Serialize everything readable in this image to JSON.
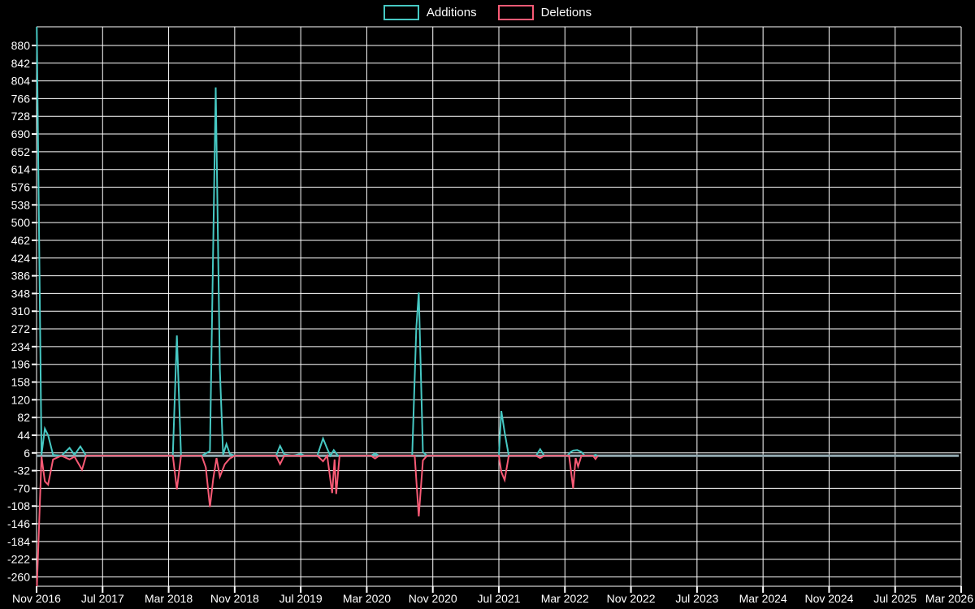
{
  "page": {
    "background": "#000000",
    "grid_color": "#ffffff",
    "text_color": "#ffffff"
  },
  "legend": {
    "items": [
      {
        "label": "Additions",
        "color": "#46c8c3"
      },
      {
        "label": "Deletions",
        "color": "#f85a75"
      }
    ]
  },
  "chart_data": {
    "type": "line",
    "title": "",
    "xlabel": "",
    "ylabel": "",
    "legend_position": "top-center",
    "grid": true,
    "x_axis": {
      "tick_labels": [
        "Nov 2016",
        "Jul 2017",
        "Mar 2018",
        "Nov 2018",
        "Jul 2019",
        "Mar 2020",
        "Nov 2020",
        "Jul 2021",
        "Mar 2022",
        "Nov 2022",
        "Jul 2023",
        "Mar 2024",
        "Nov 2024",
        "Jul 2025",
        "Mar 2026"
      ],
      "months_per_tick": 8,
      "total_months": 112
    },
    "y_axis": {
      "tick_values": [
        880,
        842,
        804,
        766,
        728,
        690,
        652,
        614,
        576,
        538,
        500,
        462,
        424,
        386,
        348,
        310,
        272,
        234,
        196,
        158,
        120,
        82,
        44,
        6,
        -32,
        -70,
        -108,
        -146,
        -184,
        -222,
        -260
      ],
      "tick_step": 38,
      "range": [
        -280,
        920
      ]
    },
    "zero_line": {
      "value": 0,
      "color": "#92a8b0"
    },
    "series": [
      {
        "name": "Additions",
        "color": "#46c8c3",
        "points": [
          [
            0,
            960
          ],
          [
            0.6,
            2
          ],
          [
            1,
            58
          ],
          [
            1.4,
            44
          ],
          [
            2,
            2
          ],
          [
            3,
            0
          ],
          [
            4,
            17
          ],
          [
            4.6,
            2
          ],
          [
            5.3,
            20
          ],
          [
            6,
            0
          ],
          [
            16.5,
            0
          ],
          [
            17,
            258
          ],
          [
            17.5,
            0
          ],
          [
            20,
            0
          ],
          [
            20.5,
            5
          ],
          [
            21,
            10
          ],
          [
            21.7,
            790
          ],
          [
            22.2,
            185
          ],
          [
            22.6,
            2
          ],
          [
            23,
            25
          ],
          [
            23.4,
            4
          ],
          [
            24,
            0
          ],
          [
            29,
            0
          ],
          [
            29.5,
            21
          ],
          [
            30,
            3
          ],
          [
            31,
            0
          ],
          [
            32,
            4
          ],
          [
            32.5,
            0
          ],
          [
            34,
            0
          ],
          [
            34.7,
            37
          ],
          [
            35.2,
            15
          ],
          [
            35.6,
            0
          ],
          [
            36,
            12
          ],
          [
            36.5,
            0
          ],
          [
            40.5,
            0
          ],
          [
            41,
            5
          ],
          [
            41.5,
            0
          ],
          [
            45.5,
            0
          ],
          [
            46,
            275
          ],
          [
            46.3,
            350
          ],
          [
            46.8,
            8
          ],
          [
            47.3,
            0
          ],
          [
            56,
            0
          ],
          [
            56.3,
            96
          ],
          [
            56.7,
            50
          ],
          [
            57.2,
            0
          ],
          [
            60.5,
            0
          ],
          [
            61,
            14
          ],
          [
            61.5,
            0
          ],
          [
            64.3,
            0
          ],
          [
            64.7,
            8
          ],
          [
            65,
            11
          ],
          [
            65.5,
            12
          ],
          [
            66,
            8
          ],
          [
            66.4,
            0
          ],
          [
            67.4,
            0
          ],
          [
            67.7,
            2
          ],
          [
            68,
            0
          ]
        ]
      },
      {
        "name": "Deletions",
        "color": "#f85a75",
        "points": [
          [
            0,
            -300
          ],
          [
            0.6,
            -2
          ],
          [
            1,
            -55
          ],
          [
            1.4,
            -62
          ],
          [
            2,
            -8
          ],
          [
            3,
            0
          ],
          [
            4,
            -8
          ],
          [
            4.6,
            -2
          ],
          [
            5.5,
            -30
          ],
          [
            6,
            0
          ],
          [
            16.5,
            0
          ],
          [
            17,
            -72
          ],
          [
            17.5,
            0
          ],
          [
            20,
            0
          ],
          [
            20.5,
            -25
          ],
          [
            21,
            -110
          ],
          [
            21.4,
            -50
          ],
          [
            21.8,
            -5
          ],
          [
            22.2,
            -45
          ],
          [
            22.8,
            -18
          ],
          [
            23.4,
            -6
          ],
          [
            24,
            0
          ],
          [
            29,
            0
          ],
          [
            29.5,
            -18
          ],
          [
            30,
            0
          ],
          [
            31.8,
            0
          ],
          [
            32,
            -2
          ],
          [
            32.3,
            0
          ],
          [
            34,
            0
          ],
          [
            34.7,
            -12
          ],
          [
            35.2,
            0
          ],
          [
            35.8,
            -80
          ],
          [
            36.1,
            -8
          ],
          [
            36.3,
            -82
          ],
          [
            36.7,
            0
          ],
          [
            40.5,
            0
          ],
          [
            41,
            -6
          ],
          [
            41.5,
            0
          ],
          [
            45.8,
            0
          ],
          [
            46.3,
            -130
          ],
          [
            46.8,
            -10
          ],
          [
            47.3,
            0
          ],
          [
            56,
            0
          ],
          [
            56.3,
            -35
          ],
          [
            56.7,
            -52
          ],
          [
            57.2,
            0
          ],
          [
            60.5,
            0
          ],
          [
            61,
            -5
          ],
          [
            61.5,
            0
          ],
          [
            64.5,
            0
          ],
          [
            65,
            -70
          ],
          [
            65.3,
            -5
          ],
          [
            65.6,
            -23
          ],
          [
            66,
            0
          ],
          [
            67.4,
            0
          ],
          [
            67.7,
            -7
          ],
          [
            68,
            0
          ]
        ]
      }
    ],
    "points_format": "[months since Nov 2016, value]"
  }
}
